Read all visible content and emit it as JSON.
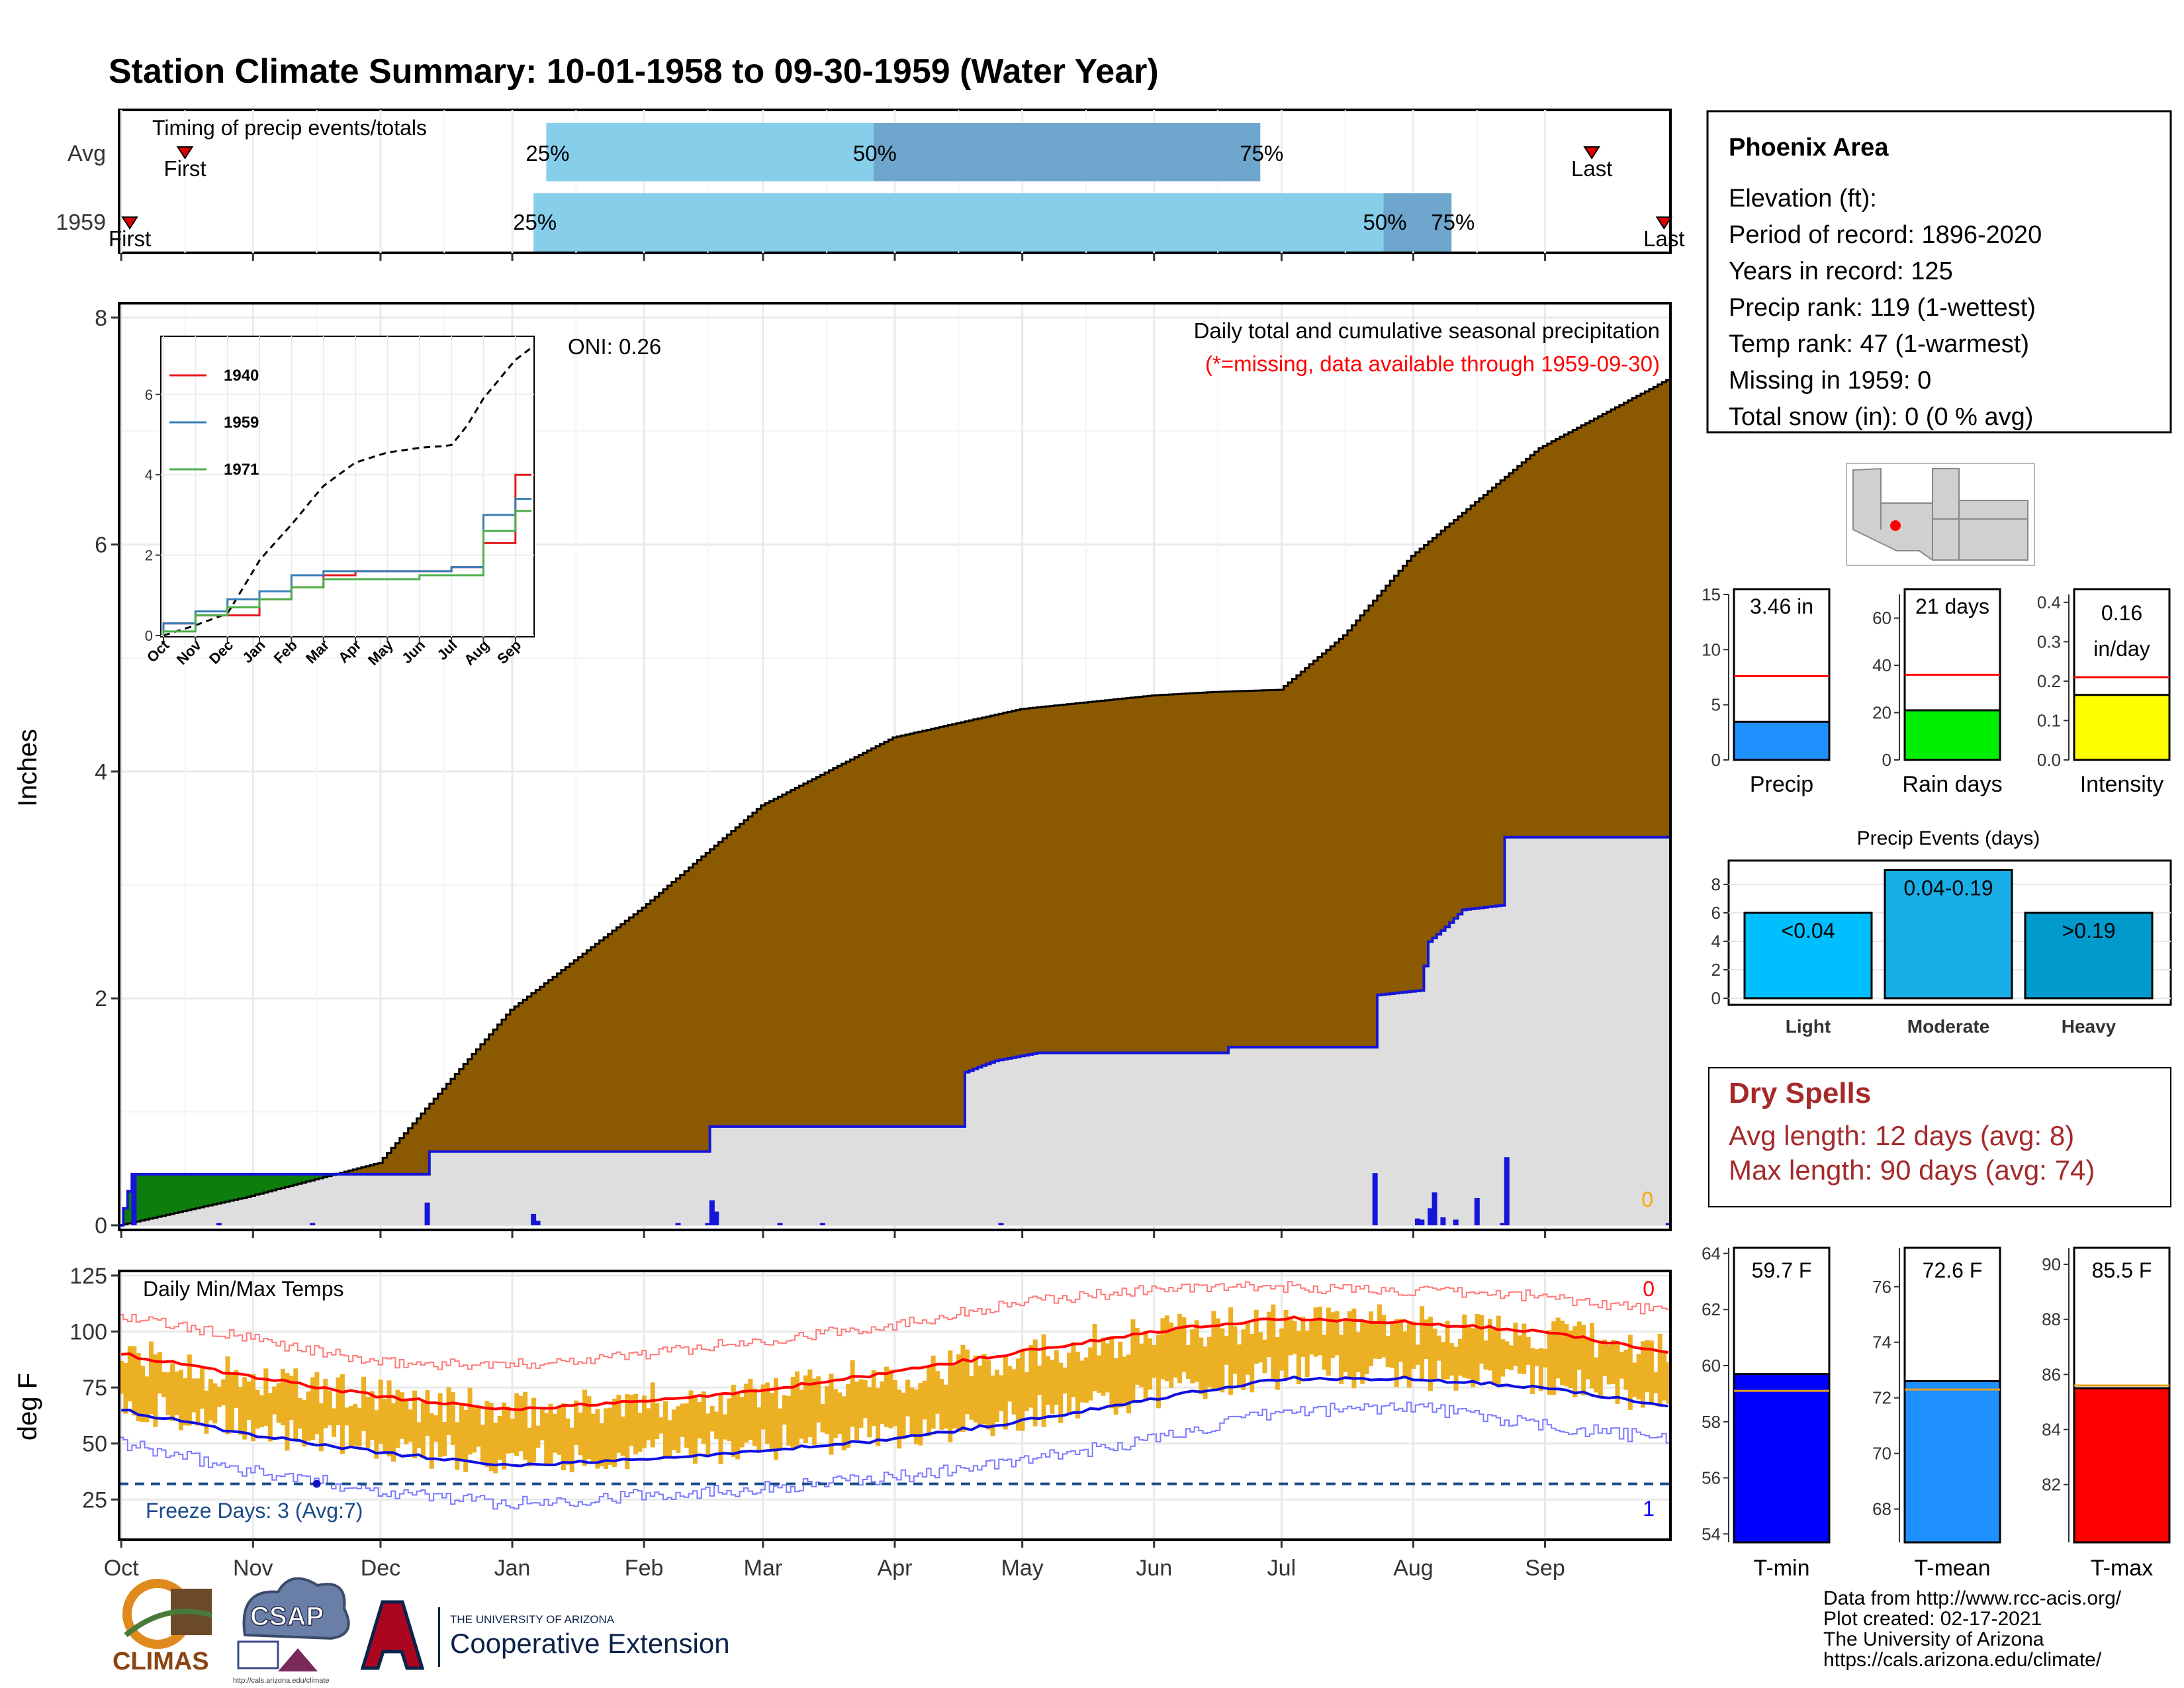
{
  "title": "Station Climate Summary: 10-01-1958 to 09-30-1959 (Water Year)",
  "colors": {
    "title": "#8b2a0a",
    "brown_fill": "#8b5a00",
    "grey_fill": "#dedede",
    "blue_line": "#1515d8",
    "green_fill": "#0d7d0d",
    "timing_light": "#87ceeb",
    "timing_dark": "#6fa6cd",
    "temp_bar": "#ecb024",
    "tmax_avg": "#ff0000",
    "tmin_avg": "#1010e0",
    "dry_spells": "#a52a2a",
    "freeze_line": "#1a4a8a"
  },
  "months": [
    "Oct",
    "Nov",
    "Dec",
    "Jan",
    "Feb",
    "Mar",
    "Apr",
    "May",
    "Jun",
    "Jul",
    "Aug",
    "Sep"
  ],
  "timing": {
    "title": "Timing of precip events/totals",
    "row_labels": [
      "Avg",
      "1959"
    ],
    "avg": {
      "first_day": 15,
      "last_day": 346,
      "p25_day": 100,
      "p50_day": 177,
      "p75_day": 268,
      "first_label": "First",
      "last_label": "Last",
      "p25_label": "25%",
      "p50_label": "50%",
      "p75_label": "75%"
    },
    "year": {
      "first_day": 2,
      "last_day": 363,
      "p25_day": 97,
      "p50_day": 297,
      "p75_day": 313,
      "first_label": "First",
      "last_label": "Last",
      "p25_label": "25%",
      "p50_label": "50%",
      "p75_label": "75%"
    }
  },
  "main": {
    "ylabel": "Inches",
    "title_right": "Daily total and cumulative seasonal precipitation",
    "missing_note": "(*=missing, data available through 1959-09-30)",
    "oni_label": "ONI: 0.26",
    "missing_count": "0",
    "yticks": [
      "0",
      "2",
      "4",
      "6",
      "8"
    ]
  },
  "inset": {
    "yticks": [
      "0",
      "2",
      "4",
      "6"
    ],
    "xticks": [
      "Oct",
      "Nov",
      "Dec",
      "Jan",
      "Feb",
      "Mar",
      "Apr",
      "May",
      "Jun",
      "Jul",
      "Aug",
      "Sep"
    ],
    "legend": [
      {
        "name": "1940",
        "color": "#e41a1c"
      },
      {
        "name": "1959",
        "color": "#377eb8"
      },
      {
        "name": "1971",
        "color": "#4daf4a"
      }
    ]
  },
  "temp": {
    "title": "Daily Min/Max Temps",
    "ylabel": "deg F",
    "yticks": [
      "25",
      "50",
      "75",
      "100",
      "125"
    ],
    "freeze_label": "Freeze Days: 3 (Avg:7)",
    "missing_max": "0",
    "missing_min": "1"
  },
  "info": {
    "station": "Phoenix Area",
    "elevation": "Elevation (ft):",
    "period": "Period of record: 1896-2020",
    "years": "Years in record: 125",
    "precip_rank": "Precip rank: 119 (1-wettest)",
    "temp_rank": "Temp rank: 47 (1-warmest)",
    "missing": "Missing in 1959: 0",
    "snow": "Total snow (in): 0 (0 % avg)"
  },
  "bars": {
    "precip": {
      "label": "Precip",
      "value_text": "3.46 in",
      "value": 3.46,
      "avg": 7.6,
      "ymax": 15,
      "ticks": [
        "0",
        "5",
        "10",
        "15"
      ],
      "color": "#1e90ff"
    },
    "raindays": {
      "label": "Rain days",
      "value_text": "21 days",
      "value": 21,
      "avg": 36,
      "ymax": 70,
      "ticks": [
        "0",
        "20",
        "40",
        "60"
      ],
      "color": "#00ee00"
    },
    "intensity": {
      "label": "Intensity",
      "value_text": "0.16",
      "value_text2": "in/day",
      "value": 0.165,
      "avg": 0.21,
      "ymax": 0.42,
      "ticks": [
        "0.0",
        "0.1",
        "0.2",
        "0.3",
        "0.4"
      ],
      "color": "#ffff00"
    }
  },
  "events": {
    "title": "Precip Events (days)",
    "ticks": [
      "0",
      "2",
      "4",
      "6",
      "8"
    ],
    "items": [
      {
        "name": "Light",
        "range": "<0.04",
        "value": 6,
        "color": "#00bfff"
      },
      {
        "name": "Moderate",
        "range": "0.04-0.19",
        "value": 9,
        "color": "#1aaee6"
      },
      {
        "name": "Heavy",
        "range": ">0.19",
        "value": 6,
        "color": "#009acd"
      }
    ]
  },
  "dry": {
    "title": "Dry Spells",
    "avg": "Avg length: 12 days (avg: 8)",
    "max": "Max length: 90 days (avg: 74)"
  },
  "tbars": {
    "tmin": {
      "label": "T-min",
      "value_text": "59.7 F",
      "value": 59.7,
      "avg": 59.1,
      "ymin": 53.7,
      "ymax": 64.2,
      "ticks": [
        "54",
        "56",
        "58",
        "60",
        "62",
        "64"
      ],
      "color": "#0000ff"
    },
    "tmean": {
      "label": "T-mean",
      "value_text": "72.6 F",
      "value": 72.6,
      "avg": 72.3,
      "ymin": 66.8,
      "ymax": 77.4,
      "ticks": [
        "68",
        "70",
        "72",
        "74",
        "76"
      ],
      "color": "#1e90ff"
    },
    "tmax": {
      "label": "T-max",
      "value_text": "85.5 F",
      "value": 85.5,
      "avg": 85.6,
      "ymin": 79.9,
      "ymax": 90.6,
      "ticks": [
        "82",
        "84",
        "86",
        "88",
        "90"
      ],
      "color": "#ff0000"
    }
  },
  "footer": {
    "line1": "Data from http://www.rcc-acis.org/",
    "line2": "Plot created: 02-17-2021",
    "line3": "The University of Arizona",
    "line4": "https://cals.arizona.edu/climate/"
  },
  "logos": {
    "climas": "CLIMAS",
    "csap": "CSAP",
    "csap_url": "http://cals.arizona.edu/climate",
    "ua_top": "THE UNIVERSITY OF ARIZONA",
    "ua_bottom": "Cooperative Extension"
  },
  "chart_data": [
    {
      "type": "area",
      "title": "Daily total and cumulative seasonal precipitation",
      "ylabel": "Inches",
      "ylim": [
        0,
        8.2
      ],
      "x_units": "day of water year (0 = Oct 1)",
      "average_cumulative": [
        [
          0,
          0
        ],
        [
          30,
          0.25
        ],
        [
          61,
          0.55
        ],
        [
          92,
          1.9
        ],
        [
          123,
          2.8
        ],
        [
          151,
          3.7
        ],
        [
          182,
          4.3
        ],
        [
          212,
          4.55
        ],
        [
          243,
          4.67
        ],
        [
          257,
          4.7
        ],
        [
          273,
          4.72
        ],
        [
          288,
          5.2
        ],
        [
          304,
          5.9
        ],
        [
          334,
          6.85
        ],
        [
          364,
          7.45
        ]
      ],
      "year_cumulative": [
        [
          0,
          0
        ],
        [
          3,
          0.45
        ],
        [
          72,
          0.45
        ],
        [
          73,
          0.65
        ],
        [
          138,
          0.65
        ],
        [
          139,
          0.87
        ],
        [
          198,
          0.87
        ],
        [
          199,
          1.35
        ],
        [
          206,
          1.45
        ],
        [
          216,
          1.52
        ],
        [
          260,
          1.52
        ],
        [
          261,
          1.57
        ],
        [
          295,
          1.57
        ],
        [
          296,
          2.03
        ],
        [
          306,
          2.07
        ],
        [
          308,
          2.5
        ],
        [
          312,
          2.63
        ],
        [
          316,
          2.78
        ],
        [
          325,
          2.82
        ],
        [
          326,
          3.42
        ],
        [
          364,
          3.42
        ]
      ],
      "daily": [
        [
          3,
          0.45
        ],
        [
          23,
          0.02
        ],
        [
          45,
          0.02
        ],
        [
          72,
          0.2
        ],
        [
          97,
          0.1
        ],
        [
          98,
          0.04
        ],
        [
          131,
          0.02
        ],
        [
          138,
          0.02
        ],
        [
          139,
          0.22
        ],
        [
          140,
          0.12
        ],
        [
          155,
          0.02
        ],
        [
          165,
          0.02
        ],
        [
          207,
          0.02
        ],
        [
          295,
          0.46
        ],
        [
          305,
          0.06
        ],
        [
          306,
          0.05
        ],
        [
          308,
          0.15
        ],
        [
          309,
          0.29
        ],
        [
          311,
          0.07
        ],
        [
          314,
          0.05
        ],
        [
          319,
          0.24
        ],
        [
          325,
          0.02
        ],
        [
          326,
          0.6
        ],
        [
          364,
          0.02
        ]
      ]
    },
    {
      "type": "line",
      "title": "",
      "xlabel": "",
      "ylim": [
        0,
        7.8
      ],
      "x": [
        "Oct",
        "Nov",
        "Dec",
        "Jan",
        "Feb",
        "Mar",
        "Apr",
        "May",
        "Jun",
        "Jul",
        "Aug",
        "Sep"
      ],
      "series": [
        {
          "name": "1940",
          "values": [
            0.3,
            0.5,
            0.5,
            0.9,
            1.2,
            1.5,
            1.6,
            1.6,
            1.6,
            1.7,
            2.3,
            4.0
          ]
        },
        {
          "name": "1959",
          "values": [
            0.3,
            0.6,
            0.9,
            1.1,
            1.5,
            1.6,
            1.6,
            1.6,
            1.6,
            1.7,
            3.0,
            3.4
          ]
        },
        {
          "name": "1971",
          "values": [
            0.1,
            0.5,
            0.7,
            0.9,
            1.2,
            1.4,
            1.4,
            1.4,
            1.5,
            1.5,
            2.6,
            3.1
          ]
        }
      ]
    },
    {
      "type": "bar",
      "title": "Daily Min/Max Temps",
      "ylabel": "deg F",
      "ylim": [
        10,
        130
      ],
      "normal_max_monthly": [
        [
          0,
          90
        ],
        [
          30,
          80
        ],
        [
          61,
          71
        ],
        [
          92,
          65
        ],
        [
          123,
          69
        ],
        [
          151,
          74
        ],
        [
          182,
          82
        ],
        [
          212,
          91
        ],
        [
          243,
          100
        ],
        [
          273,
          106
        ],
        [
          304,
          104
        ],
        [
          334,
          100
        ],
        [
          364,
          91
        ]
      ],
      "normal_min_monthly": [
        [
          0,
          65
        ],
        [
          30,
          54
        ],
        [
          61,
          46
        ],
        [
          92,
          40
        ],
        [
          123,
          43
        ],
        [
          151,
          47
        ],
        [
          182,
          52
        ],
        [
          212,
          60
        ],
        [
          243,
          70
        ],
        [
          273,
          79
        ],
        [
          304,
          79
        ],
        [
          334,
          75
        ],
        [
          364,
          67
        ]
      ],
      "record_max_monthly": [
        [
          0,
          107
        ],
        [
          30,
          97
        ],
        [
          61,
          86
        ],
        [
          92,
          85
        ],
        [
          123,
          90
        ],
        [
          151,
          96
        ],
        [
          182,
          103
        ],
        [
          212,
          113
        ],
        [
          243,
          119
        ],
        [
          273,
          120
        ],
        [
          304,
          118
        ],
        [
          334,
          116
        ],
        [
          364,
          109
        ]
      ],
      "record_min_monthly": [
        [
          0,
          50
        ],
        [
          30,
          38
        ],
        [
          61,
          29
        ],
        [
          92,
          23
        ],
        [
          123,
          27
        ],
        [
          151,
          30
        ],
        [
          182,
          35
        ],
        [
          212,
          42
        ],
        [
          243,
          52
        ],
        [
          273,
          64
        ],
        [
          304,
          67
        ],
        [
          334,
          58
        ],
        [
          364,
          52
        ]
      ],
      "freeze_threshold": 32
    },
    {
      "type": "bar",
      "title": "Precip Events (days)",
      "categories": [
        "Light",
        "Moderate",
        "Heavy"
      ],
      "values": [
        6,
        9,
        6
      ]
    }
  ]
}
